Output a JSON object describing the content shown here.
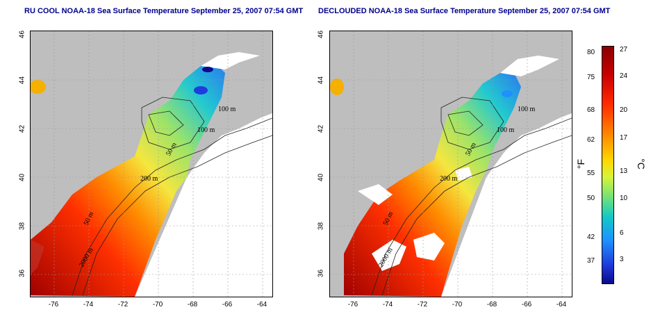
{
  "titles": {
    "left": "RU COOL NOAA-18 Sea Surface Temperature September 25, 2007 07:54 GMT",
    "right": "DECLOUDED NOAA-18 Sea Surface Temperature September 25, 2007 07:54 GMT"
  },
  "axes": {
    "x_ticks": [
      "-76",
      "-74",
      "-72",
      "-70",
      "-68",
      "-66",
      "-64"
    ],
    "y_ticks": [
      "46",
      "44",
      "42",
      "40",
      "38",
      "36"
    ]
  },
  "contours": {
    "labels": [
      "100 m",
      "100 m",
      "50 m",
      "200 m",
      "50 m",
      "2000 m"
    ]
  },
  "colorbar": {
    "fahrenheit": [
      "80",
      "75",
      "68",
      "62",
      "55",
      "50",
      "42",
      "37"
    ],
    "celsius": [
      "27",
      "24",
      "20",
      "17",
      "13",
      "10",
      "6",
      "3"
    ],
    "unit_f": "°F",
    "unit_c": "°C"
  },
  "colors": {
    "land": "#bebebe",
    "missing": "#ffffff",
    "warm": "#ff4500",
    "cool": "#1e90ff"
  }
}
